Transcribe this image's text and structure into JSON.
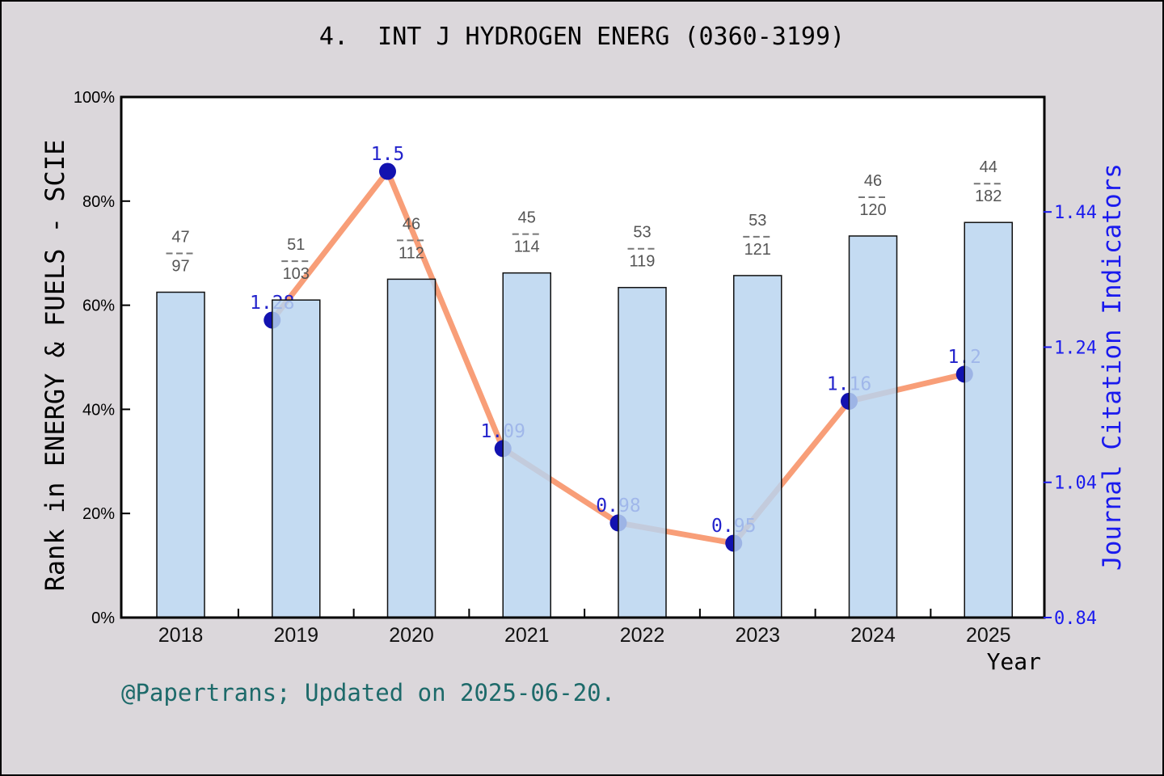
{
  "title": "4.  INT J HYDROGEN ENERG (0360-3199)",
  "footer_note": "@Papertrans; Updated on 2025-06-20.",
  "colors": {
    "background": "#dbd7db",
    "plot_background": "#ffffff",
    "frame": "#000000",
    "bar_fill": "#b9d4ef",
    "bar_fill_opacity": 0.84,
    "bar_stroke": "#111111",
    "line": "#f89e78",
    "point": "#1212b0",
    "value_label": "#2323cc",
    "right_axis": "#1a1aee",
    "fraction_label": "#555555",
    "fraction_dash": "#777777",
    "tick": "#000000",
    "year_label": "#111111",
    "footer": "#1d6a6a"
  },
  "chart_data": {
    "type": "bar",
    "title": "4.  INT J HYDROGEN ENERG (0360-3199)",
    "categories": [
      "2018",
      "2019",
      "2020",
      "2021",
      "2022",
      "2023",
      "2024",
      "2025"
    ],
    "series": [
      {
        "name": "Rank in ENERGY & FUELS - SCIE",
        "type": "bar",
        "axis": "left",
        "unit": "percent",
        "values": [
          62.5,
          61.0,
          65.0,
          66.2,
          63.4,
          65.7,
          73.3,
          75.9
        ],
        "rank_fractions": [
          {
            "numerator": "47",
            "denominator": "97"
          },
          {
            "numerator": "51",
            "denominator": "103"
          },
          {
            "numerator": "46",
            "denominator": "112"
          },
          {
            "numerator": "45",
            "denominator": "114"
          },
          {
            "numerator": "53",
            "denominator": "119"
          },
          {
            "numerator": "53",
            "denominator": "121"
          },
          {
            "numerator": "46",
            "denominator": "120"
          },
          {
            "numerator": "44",
            "denominator": "182"
          }
        ]
      },
      {
        "name": "Journal Citation Indicators",
        "type": "line",
        "axis": "right",
        "values": [
          null,
          1.28,
          1.5,
          1.09,
          0.98,
          0.95,
          1.16,
          1.2
        ],
        "point_labels": [
          null,
          "1.28",
          "1.5",
          "1.09",
          "0.98",
          "0.95",
          "1.16",
          "1.2"
        ]
      }
    ],
    "left_axis": {
      "label": "Rank in ENERGY & FUELS - SCIE",
      "ticks": [
        "0%",
        "20%",
        "40%",
        "60%",
        "80%",
        "100%"
      ],
      "tick_values": [
        0,
        20,
        40,
        60,
        80,
        100
      ],
      "min": 0,
      "max": 100
    },
    "right_axis": {
      "label": "Journal Citation Indicators",
      "ticks": [
        "0.84",
        "1.04",
        "1.24",
        "1.44"
      ],
      "tick_values": [
        0.84,
        1.04,
        1.24,
        1.44
      ],
      "min": 0.84,
      "max": 1.61
    },
    "x_axis": {
      "label": "Year",
      "ticks": [
        "2018",
        "2019",
        "2020",
        "2021",
        "2022",
        "2023",
        "2024",
        "2025"
      ]
    },
    "legend": "none",
    "grid": "off"
  }
}
